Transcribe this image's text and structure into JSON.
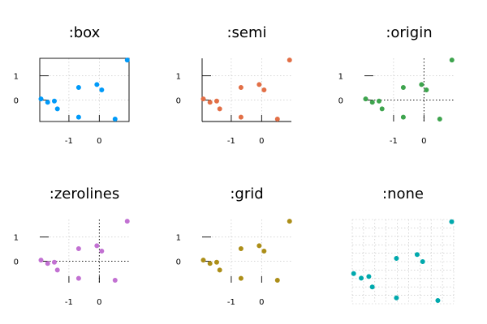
{
  "chart_data": [
    {
      "type": "scatter",
      "title": ":box",
      "framestyle": "box",
      "grid": true,
      "ticks": true,
      "color": "#009AF9",
      "x": [
        -1.92,
        -1.7,
        -1.48,
        -1.38,
        -0.68,
        -0.68,
        -0.08,
        0.08,
        0.52,
        0.92
      ],
      "y": [
        0.05,
        -0.09,
        -0.04,
        -0.36,
        0.52,
        -0.7,
        0.64,
        0.42,
        -0.78,
        1.65
      ],
      "xlim": [
        -1.96,
        0.98
      ],
      "ylim": [
        -0.88,
        1.72
      ],
      "xticks": [
        -1,
        0
      ],
      "yticks": [
        0,
        1
      ]
    },
    {
      "type": "scatter",
      "title": ":semi",
      "framestyle": "semi",
      "grid": true,
      "ticks": true,
      "color": "#E26F46",
      "x": [
        -1.92,
        -1.7,
        -1.48,
        -1.38,
        -0.68,
        -0.68,
        -0.08,
        0.08,
        0.52,
        0.92
      ],
      "y": [
        0.05,
        -0.09,
        -0.04,
        -0.36,
        0.52,
        -0.7,
        0.64,
        0.42,
        -0.78,
        1.65
      ],
      "xlim": [
        -1.96,
        0.98
      ],
      "ylim": [
        -0.88,
        1.72
      ],
      "xticks": [
        -1,
        0
      ],
      "yticks": [
        0,
        1
      ]
    },
    {
      "type": "scatter",
      "title": ":origin",
      "framestyle": "origin",
      "grid": true,
      "ticks": true,
      "color": "#3EA44E",
      "x": [
        -1.92,
        -1.7,
        -1.48,
        -1.38,
        -0.68,
        -0.68,
        -0.08,
        0.08,
        0.52,
        0.92
      ],
      "y": [
        0.05,
        -0.09,
        -0.04,
        -0.36,
        0.52,
        -0.7,
        0.64,
        0.42,
        -0.78,
        1.65
      ],
      "xlim": [
        -1.96,
        0.98
      ],
      "ylim": [
        -0.88,
        1.72
      ],
      "xticks": [
        -1,
        0
      ],
      "yticks": [
        0,
        1
      ]
    },
    {
      "type": "scatter",
      "title": ":zerolines",
      "framestyle": "zerolines",
      "grid": true,
      "ticks": true,
      "color": "#C271D2",
      "x": [
        -1.92,
        -1.7,
        -1.48,
        -1.38,
        -0.68,
        -0.68,
        -0.08,
        0.08,
        0.52,
        0.92
      ],
      "y": [
        0.05,
        -0.09,
        -0.04,
        -0.36,
        0.52,
        -0.7,
        0.64,
        0.42,
        -0.78,
        1.65
      ],
      "xlim": [
        -1.96,
        0.98
      ],
      "ylim": [
        -0.88,
        1.72
      ],
      "xticks": [
        -1,
        0
      ],
      "yticks": [
        0,
        1
      ]
    },
    {
      "type": "scatter",
      "title": ":grid",
      "framestyle": "grid",
      "grid": true,
      "ticks": true,
      "color": "#AC8E18",
      "x": [
        -1.92,
        -1.7,
        -1.48,
        -1.38,
        -0.68,
        -0.68,
        -0.08,
        0.08,
        0.52,
        0.92
      ],
      "y": [
        0.05,
        -0.09,
        -0.04,
        -0.36,
        0.52,
        -0.7,
        0.64,
        0.42,
        -0.78,
        1.65
      ],
      "xlim": [
        -1.96,
        0.98
      ],
      "ylim": [
        -0.88,
        1.72
      ],
      "xticks": [
        -1,
        0
      ],
      "yticks": [
        0,
        1
      ]
    },
    {
      "type": "scatter",
      "title": ":none",
      "framestyle": "none",
      "grid": true,
      "ticks": false,
      "color": "#00A9AD",
      "x": [
        -1.92,
        -1.7,
        -1.48,
        -1.38,
        -0.68,
        -0.68,
        -0.08,
        0.08,
        0.52,
        0.92
      ],
      "y": [
        0.05,
        -0.09,
        -0.04,
        -0.36,
        0.52,
        -0.7,
        0.64,
        0.42,
        -0.78,
        1.65
      ],
      "xlim": [
        -1.96,
        0.98
      ],
      "ylim": [
        -0.88,
        1.72
      ],
      "xticks": [
        -1,
        0
      ],
      "yticks": [
        0,
        1
      ]
    }
  ]
}
